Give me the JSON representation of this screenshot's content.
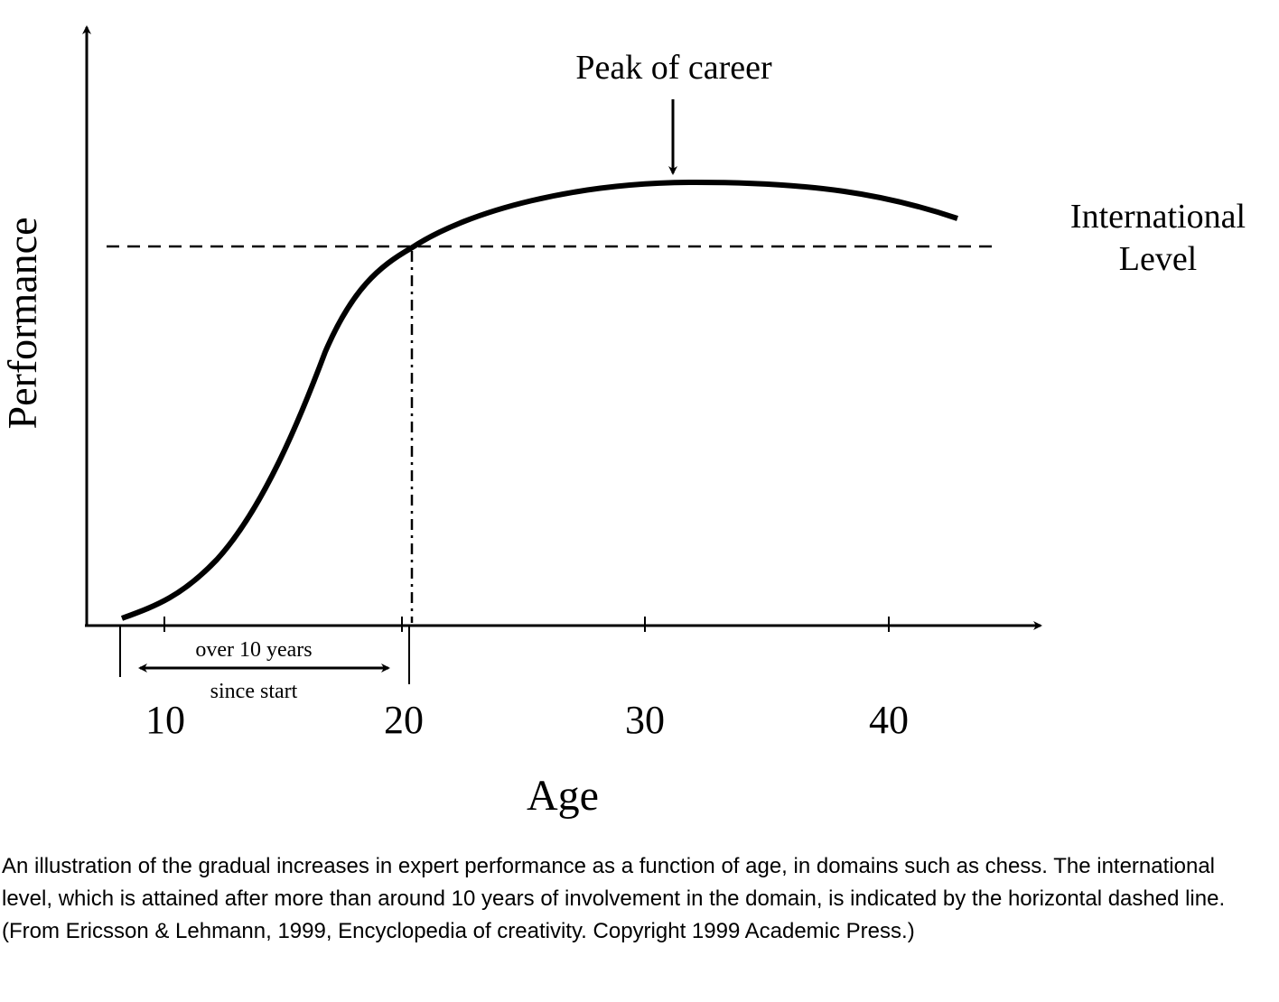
{
  "figure": {
    "annotation": "Peak of career",
    "level_label": [
      "International",
      "Level"
    ],
    "y_axis_label": "Performance",
    "x_axis_label": "Age",
    "x_tick_labels": [
      "10",
      "20",
      "30",
      "40"
    ],
    "interval_label": [
      "over 10 years",
      "since start"
    ]
  },
  "caption": "An illustration of the gradual increases in expert performance as a function of age, in domains such as chess. The international level, which is attained after more than around 10 years of involvement in the domain, is indicated by the horizontal dashed line. (From Ericsson & Lehmann, 1999, Encyclopedia of creativity. Copyright 1999 Academic Press.)"
}
